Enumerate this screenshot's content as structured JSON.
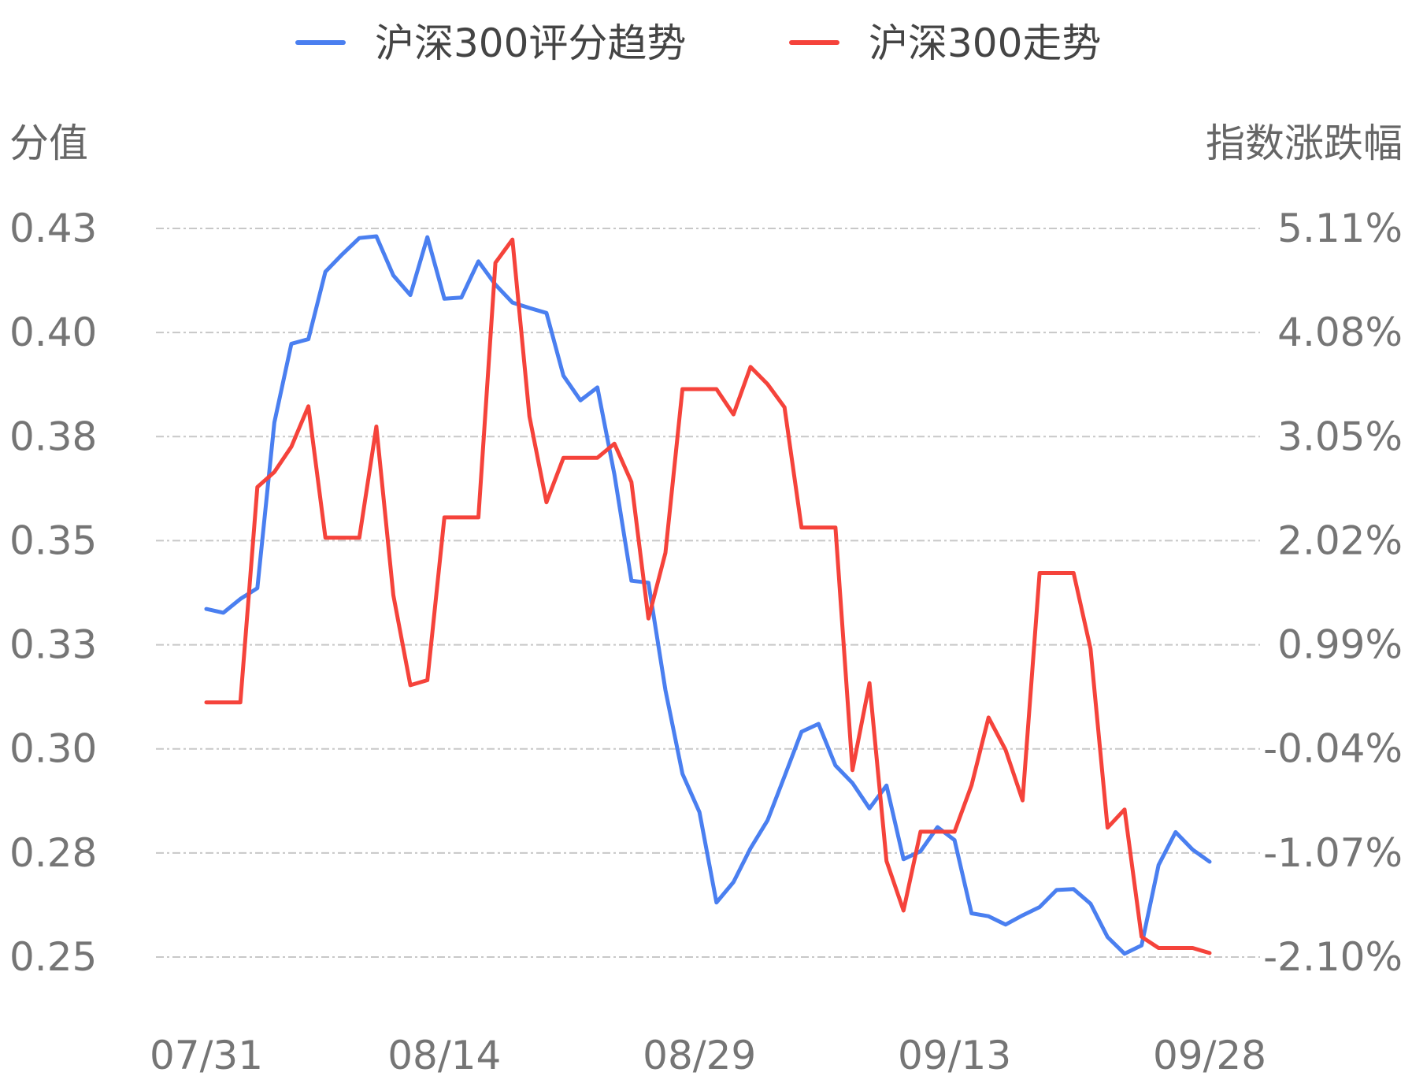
{
  "chart_data": {
    "type": "line",
    "legend": {
      "position": "top-center"
    },
    "grid": true,
    "x": [
      "07/31",
      "08/01",
      "08/02",
      "08/03",
      "08/04",
      "08/05",
      "08/06",
      "08/07",
      "08/08",
      "08/09",
      "08/10",
      "08/11",
      "08/12",
      "08/13",
      "08/14",
      "08/15",
      "08/16",
      "08/17",
      "08/18",
      "08/19",
      "08/20",
      "08/21",
      "08/22",
      "08/23",
      "08/24",
      "08/25",
      "08/26",
      "08/27",
      "08/28",
      "08/29",
      "08/30",
      "08/31",
      "09/01",
      "09/02",
      "09/03",
      "09/04",
      "09/05",
      "09/06",
      "09/07",
      "09/08",
      "09/09",
      "09/10",
      "09/11",
      "09/12",
      "09/13",
      "09/14",
      "09/15",
      "09/16",
      "09/17",
      "09/18",
      "09/19",
      "09/20",
      "09/21",
      "09/22",
      "09/23",
      "09/24",
      "09/25",
      "09/26",
      "09/27",
      "09/28"
    ],
    "x_tick_labels": [
      "07/31",
      "08/14",
      "08/29",
      "09/13",
      "09/28"
    ],
    "x_tick_index": [
      0,
      14,
      29,
      44,
      59
    ],
    "left_axis": {
      "label": "分值",
      "ticks": [
        "0.43",
        "0.40",
        "0.38",
        "0.35",
        "0.33",
        "0.30",
        "0.28",
        "0.25"
      ],
      "ylim": [
        0.25,
        0.425
      ]
    },
    "right_axis": {
      "label": "指数涨跌幅",
      "ticks": [
        "5.11%",
        "4.08%",
        "3.05%",
        "2.02%",
        "0.99%",
        "-0.04%",
        "-1.07%",
        "-2.10%"
      ],
      "ylim": [
        -2.1,
        5.11
      ]
    },
    "series": [
      {
        "name": "沪深300评分趋势",
        "axis": "left",
        "color": "#4a7ff0",
        "values": [
          0.3336,
          0.3327,
          0.336,
          0.3386,
          0.3784,
          0.3973,
          0.3984,
          0.4146,
          0.4188,
          0.4227,
          0.4231,
          0.4137,
          0.409,
          0.4229,
          0.4081,
          0.4084,
          0.4171,
          0.4115,
          0.4072,
          0.4059,
          0.4047,
          0.3896,
          0.3837,
          0.3868,
          0.3659,
          0.3404,
          0.3399,
          0.3141,
          0.294,
          0.2848,
          0.2631,
          0.268,
          0.2761,
          0.2828,
          0.2934,
          0.3041,
          0.306,
          0.296,
          0.2918,
          0.2857,
          0.2912,
          0.2735,
          0.2754,
          0.2812,
          0.2781,
          0.2605,
          0.2598,
          0.2578,
          0.26,
          0.262,
          0.2661,
          0.2663,
          0.2628,
          0.2548,
          0.2508,
          0.2528,
          0.2721,
          0.28,
          0.2758,
          0.2729
        ]
      },
      {
        "name": "沪深300走势",
        "axis": "right",
        "color": "#f5433b",
        "values": [
          0.42,
          0.42,
          0.42,
          2.55,
          2.7,
          2.95,
          3.35,
          2.05,
          2.05,
          2.05,
          3.15,
          1.48,
          0.59,
          0.64,
          2.25,
          2.25,
          2.25,
          4.77,
          5.0,
          3.25,
          2.4,
          2.84,
          2.84,
          2.84,
          2.98,
          2.6,
          1.25,
          1.9,
          3.52,
          3.52,
          3.52,
          3.27,
          3.74,
          3.57,
          3.34,
          2.15,
          2.15,
          2.15,
          -0.25,
          0.61,
          -1.15,
          -1.64,
          -0.86,
          -0.86,
          -0.86,
          -0.4,
          0.27,
          -0.05,
          -0.55,
          1.7,
          1.7,
          1.7,
          0.95,
          -0.82,
          -0.64,
          -1.9,
          -2.01,
          -2.01,
          -2.01,
          -2.06
        ]
      }
    ]
  }
}
